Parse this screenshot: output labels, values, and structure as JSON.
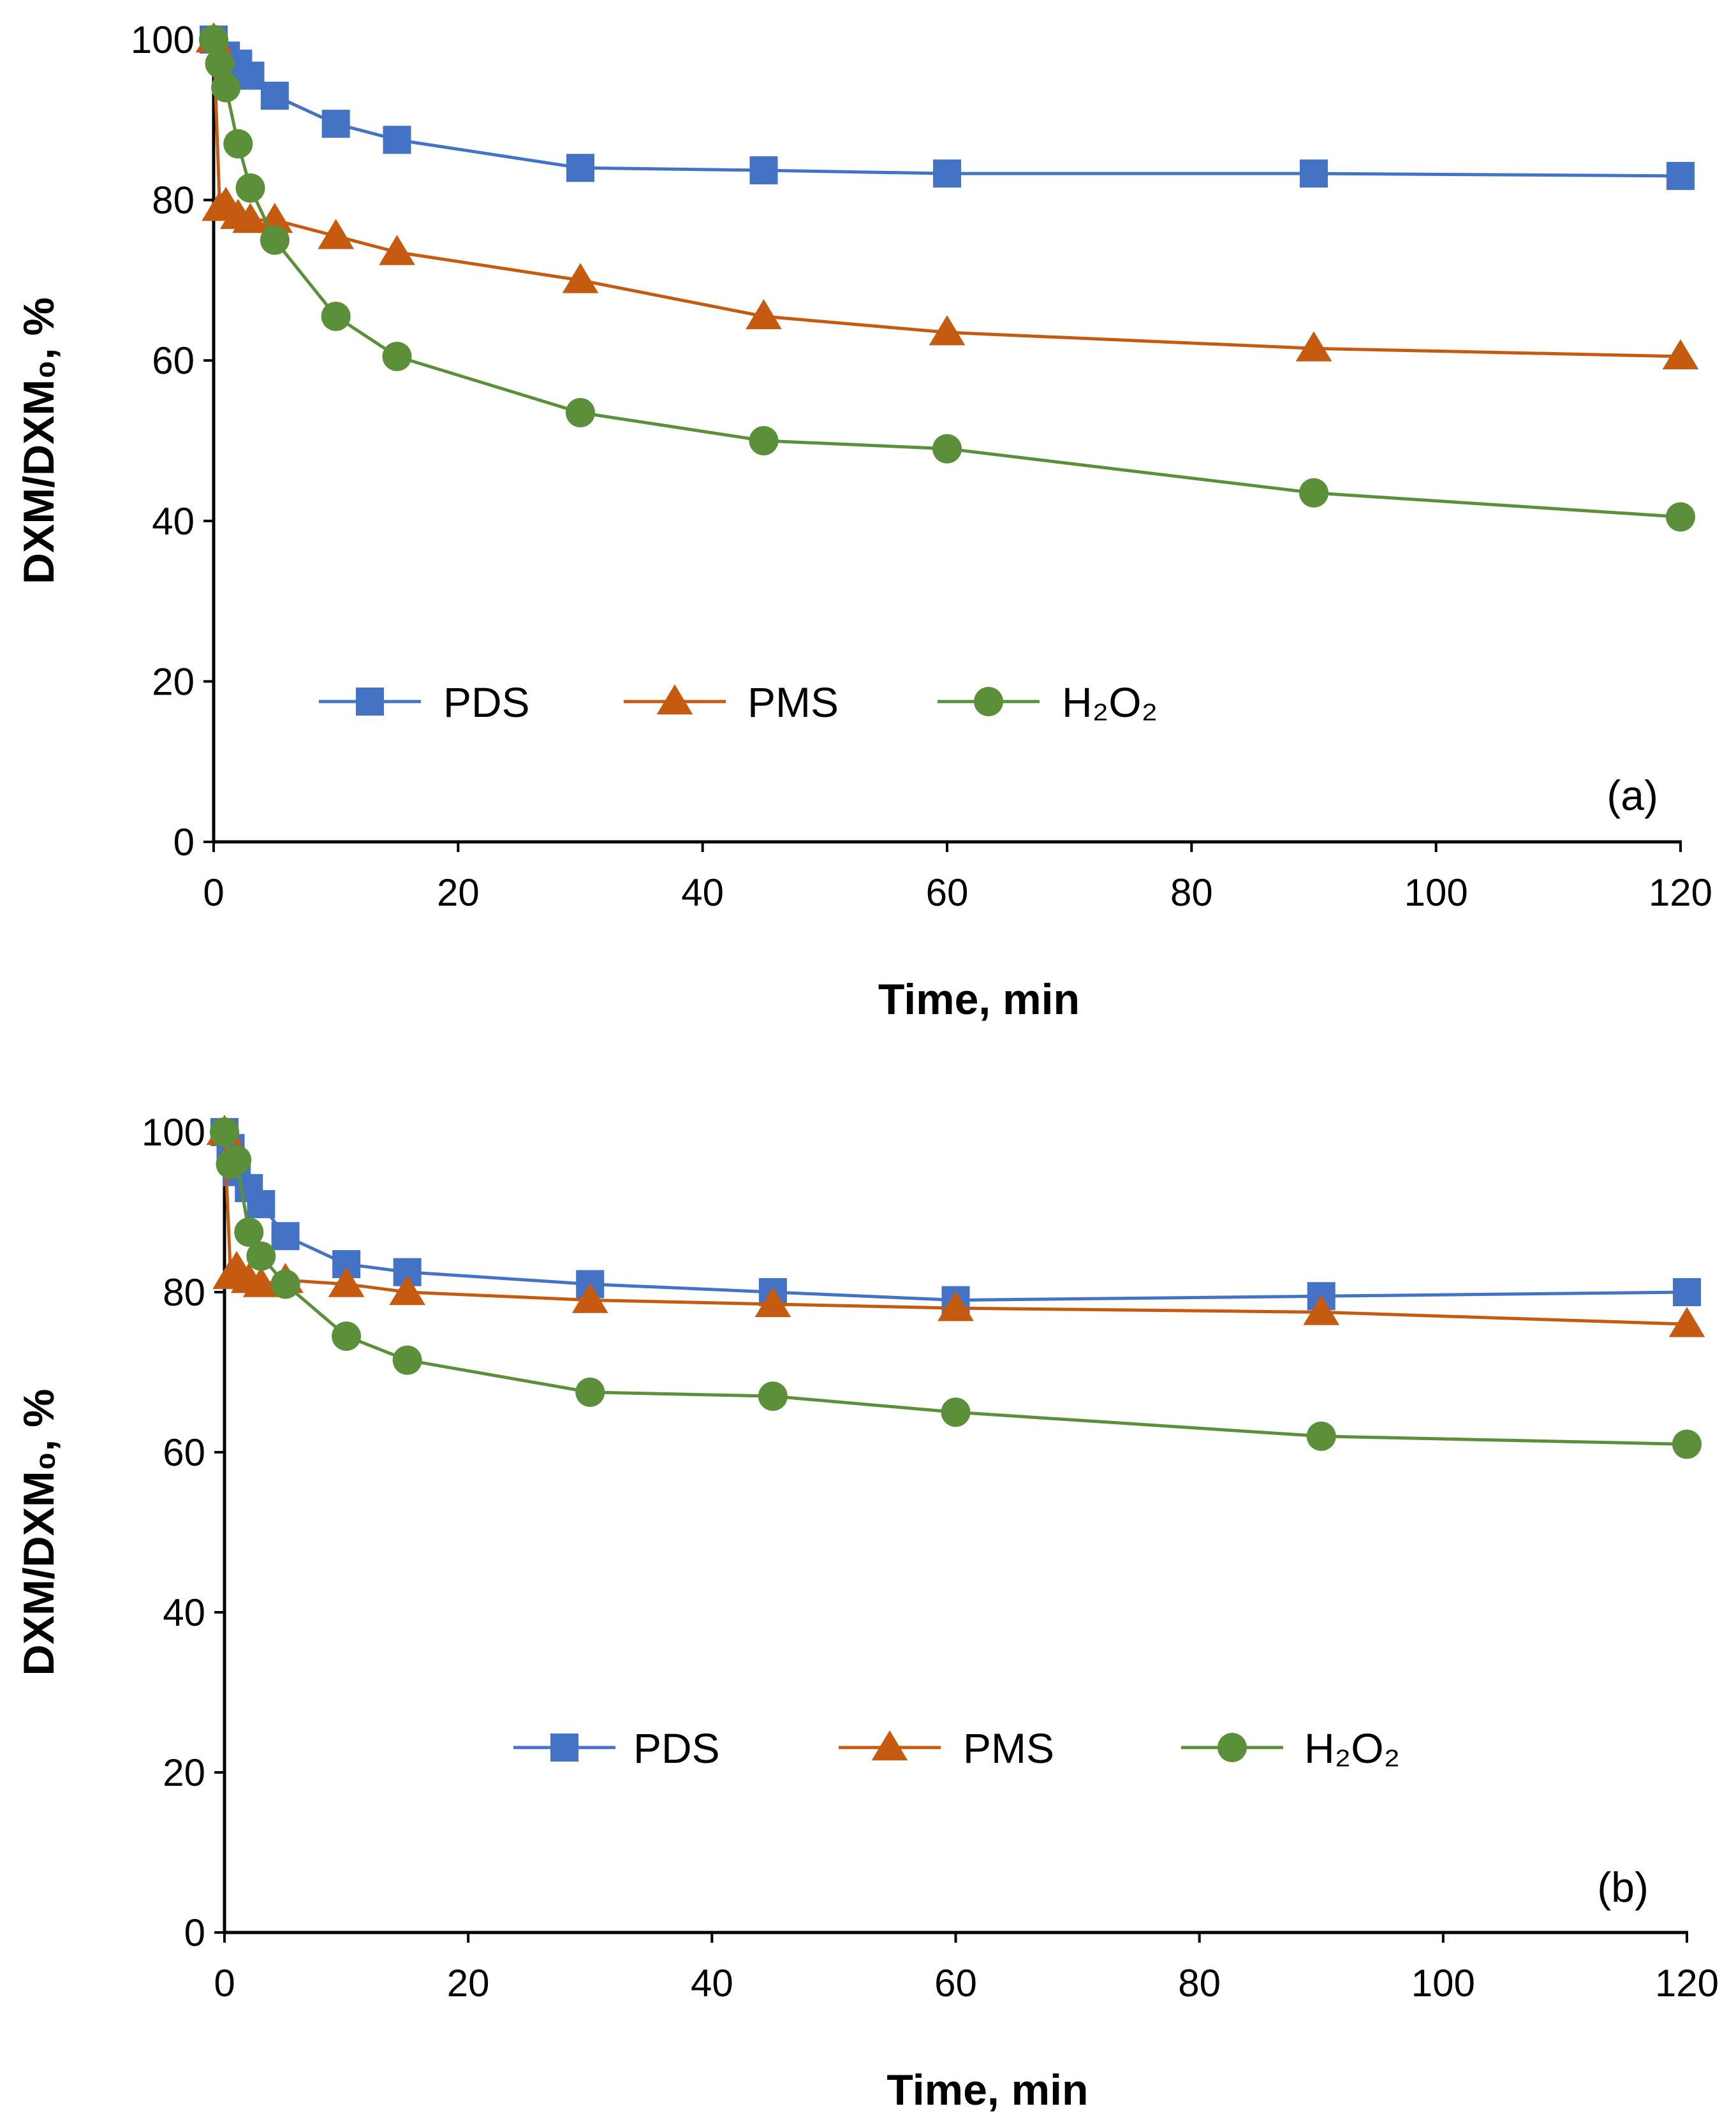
{
  "chart_data": [
    {
      "type": "line",
      "panel_label": "(a)",
      "xlabel": "Time, min",
      "ylabel": "DXM/DXM₀, %",
      "xlim": [
        0,
        120
      ],
      "ylim": [
        0,
        100
      ],
      "xticks": [
        0,
        20,
        40,
        60,
        80,
        100,
        120
      ],
      "yticks": [
        0,
        20,
        40,
        60,
        80,
        100
      ],
      "grid": false,
      "legend_position": "lower-left",
      "series": [
        {
          "name": "PDS",
          "legend_label": "PDS",
          "marker": "square",
          "color": "#4472C4",
          "x": [
            0,
            1,
            2,
            3,
            5,
            10,
            15,
            30,
            45,
            60,
            90,
            120
          ],
          "y": [
            100,
            98,
            97,
            95.5,
            93,
            89.5,
            87.5,
            84,
            83.7,
            83.3,
            83.3,
            83
          ]
        },
        {
          "name": "PMS",
          "legend_label": "PMS",
          "marker": "triangle",
          "color": "#C55A11",
          "x": [
            0,
            0.5,
            1,
            2,
            3,
            5,
            10,
            15,
            30,
            45,
            60,
            90,
            120
          ],
          "y": [
            100,
            79,
            79.5,
            78,
            77.5,
            77.5,
            75.5,
            73.5,
            70,
            65.5,
            63.5,
            61.5,
            60.5
          ]
        },
        {
          "name": "H2O2",
          "legend_label": "H₂O₂",
          "marker": "circle",
          "color": "#5B8F3A",
          "x": [
            0,
            0.5,
            1,
            2,
            3,
            5,
            10,
            15,
            30,
            45,
            60,
            90,
            120
          ],
          "y": [
            100,
            97,
            94,
            87,
            81.5,
            75,
            65.5,
            60.5,
            53.5,
            50,
            49,
            43.5,
            40.5
          ]
        }
      ]
    },
    {
      "type": "line",
      "panel_label": "(b)",
      "xlabel": "Time, min",
      "ylabel": "DXM/DXM₀, %",
      "xlim": [
        0,
        120
      ],
      "ylim": [
        0,
        100
      ],
      "xticks": [
        0,
        20,
        40,
        60,
        80,
        100,
        120
      ],
      "yticks": [
        0,
        20,
        40,
        60,
        80,
        100
      ],
      "grid": false,
      "legend_position": "lower-center",
      "series": [
        {
          "name": "PDS",
          "legend_label": "PDS",
          "marker": "square",
          "color": "#4472C4",
          "x": [
            0,
            0.5,
            1,
            2,
            3,
            5,
            10,
            15,
            30,
            45,
            60,
            90,
            120
          ],
          "y": [
            100,
            98,
            95,
            93,
            91,
            87,
            83.5,
            82.5,
            81,
            80,
            79,
            79.5,
            80
          ]
        },
        {
          "name": "PMS",
          "legend_label": "PMS",
          "marker": "triangle",
          "color": "#C55A11",
          "x": [
            0,
            0.5,
            1,
            2,
            3,
            5,
            10,
            15,
            30,
            45,
            60,
            90,
            120
          ],
          "y": [
            100,
            82,
            83,
            81.5,
            81,
            81.5,
            81,
            80,
            79,
            78.5,
            78,
            77.5,
            76
          ]
        },
        {
          "name": "H2O2",
          "legend_label": "H₂O₂",
          "marker": "circle",
          "color": "#5B8F3A",
          "x": [
            0,
            0.5,
            1,
            2,
            3,
            5,
            10,
            15,
            30,
            45,
            60,
            90,
            120
          ],
          "y": [
            100,
            96,
            96.5,
            87.5,
            84.5,
            81,
            74.5,
            71.5,
            67.5,
            67,
            65,
            62,
            61
          ]
        }
      ]
    }
  ]
}
